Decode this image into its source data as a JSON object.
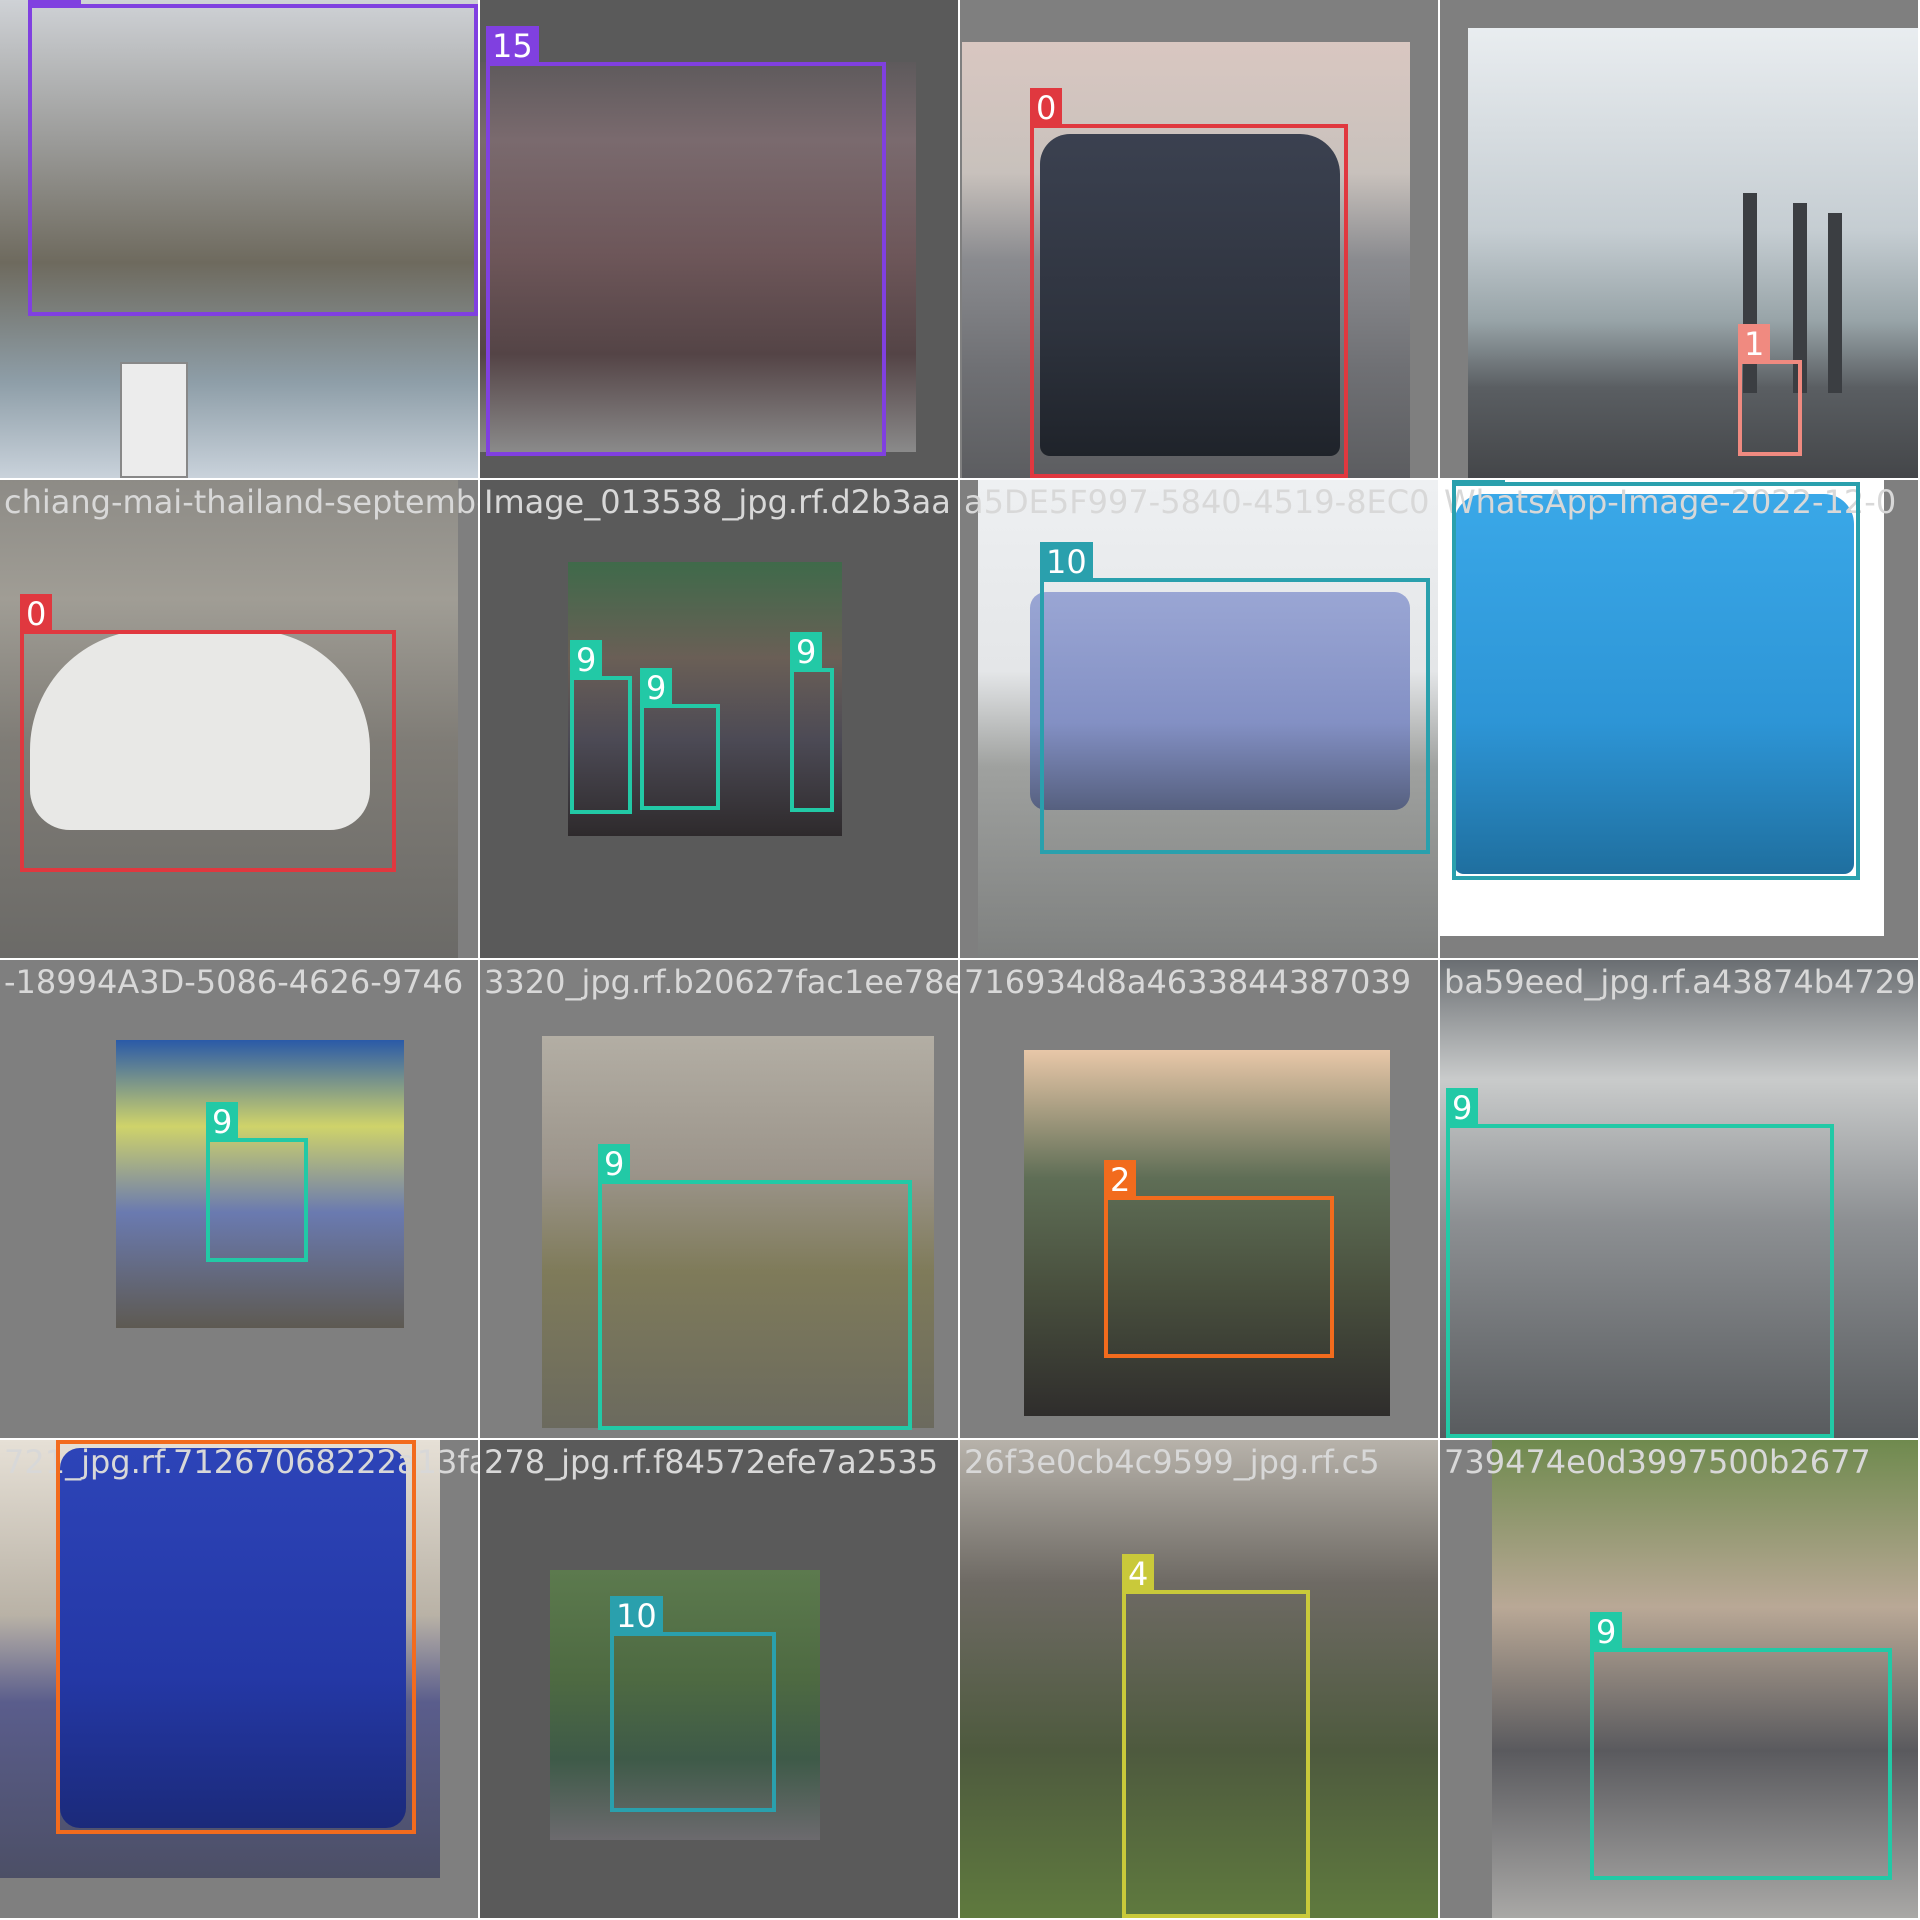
{
  "colors": {
    "class_0": "#e0383f",
    "class_1": "#f08a80",
    "class_2": "#f26b1d",
    "class_4": "#c9c93a",
    "class_9": "#22c9a6",
    "class_10": "#2aa0ad",
    "class_15": "#8040e0",
    "tile_padding": "#7f7f7f",
    "tile_padding_dark": "#5a5a5a"
  },
  "tiles": [
    {
      "filename": "",
      "photo": "inverted truck under crane with Honda sign and power lines",
      "boxes": [
        {
          "label": "15",
          "class": "class_15"
        }
      ]
    },
    {
      "filename": "",
      "photo": "pixelated truck front",
      "boxes": [
        {
          "label": "15",
          "class": "class_15"
        }
      ]
    },
    {
      "filename": "",
      "photo": "dark minivan on road",
      "boxes": [
        {
          "label": "0",
          "class": "class_0"
        }
      ]
    },
    {
      "filename": "",
      "photo": "red beetle car on highway with chimneys",
      "boxes": [
        {
          "label": "1",
          "class": "class_1"
        }
      ]
    },
    {
      "filename": "chiang-mai-thailand-september",
      "photo": "white beetle car",
      "boxes": [
        {
          "label": "0",
          "class": "class_0"
        }
      ]
    },
    {
      "filename": "Image_013538_jpg.rf.d2b3aa",
      "photo": "motorcycle riders in traffic",
      "boxes": [
        {
          "label": "9",
          "class": "class_9"
        },
        {
          "label": "9",
          "class": "class_9"
        },
        {
          "label": "9",
          "class": "class_9"
        }
      ]
    },
    {
      "filename": "a5DE5F997-5840-4519-8EC0",
      "photo": "blue coach bus",
      "boxes": [
        {
          "label": "10",
          "class": "class_10"
        }
      ]
    },
    {
      "filename": "WhatsApp-Image-2022-12-0",
      "photo": "electric blue bus",
      "boxes": [
        {
          "label": "10",
          "class": "class_10"
        }
      ]
    },
    {
      "filename": "-18994A3D-5086-4626-9746",
      "photo": "rider on motorbike",
      "boxes": [
        {
          "label": "9",
          "class": "class_9"
        }
      ]
    },
    {
      "filename": "3320_jpg.rf.b20627fac1ee78e",
      "photo": "man on olive scooter",
      "boxes": [
        {
          "label": "9",
          "class": "class_9"
        }
      ]
    },
    {
      "filename": "716934d8a4633844387039",
      "photo": "red articulated bus",
      "boxes": [
        {
          "label": "2",
          "class": "class_2"
        }
      ]
    },
    {
      "filename": "ba59eed_jpg.rf.a43874b4729",
      "photo": "man on grey scooter",
      "boxes": [
        {
          "label": "9",
          "class": "class_9"
        }
      ]
    },
    {
      "filename": "721_jpg.rf.71267068222a13fa",
      "photo": "blue city bus",
      "boxes": [
        {
          "label": "2",
          "class": "class_2"
        }
      ]
    },
    {
      "filename": "278_jpg.rf.f84572efe7a2535",
      "photo": "small bus on tree-lined road",
      "boxes": [
        {
          "label": "10",
          "class": "class_10"
        }
      ]
    },
    {
      "filename": "26f3e0cb4c9599_jpg.rf.c5",
      "photo": "adventure motorcycle in mountains",
      "boxes": [
        {
          "label": "4",
          "class": "class_4"
        }
      ]
    },
    {
      "filename": "739474e0d3997500b2677",
      "photo": "two people on sport motorcycle",
      "boxes": [
        {
          "label": "9",
          "class": "class_9"
        }
      ]
    }
  ]
}
